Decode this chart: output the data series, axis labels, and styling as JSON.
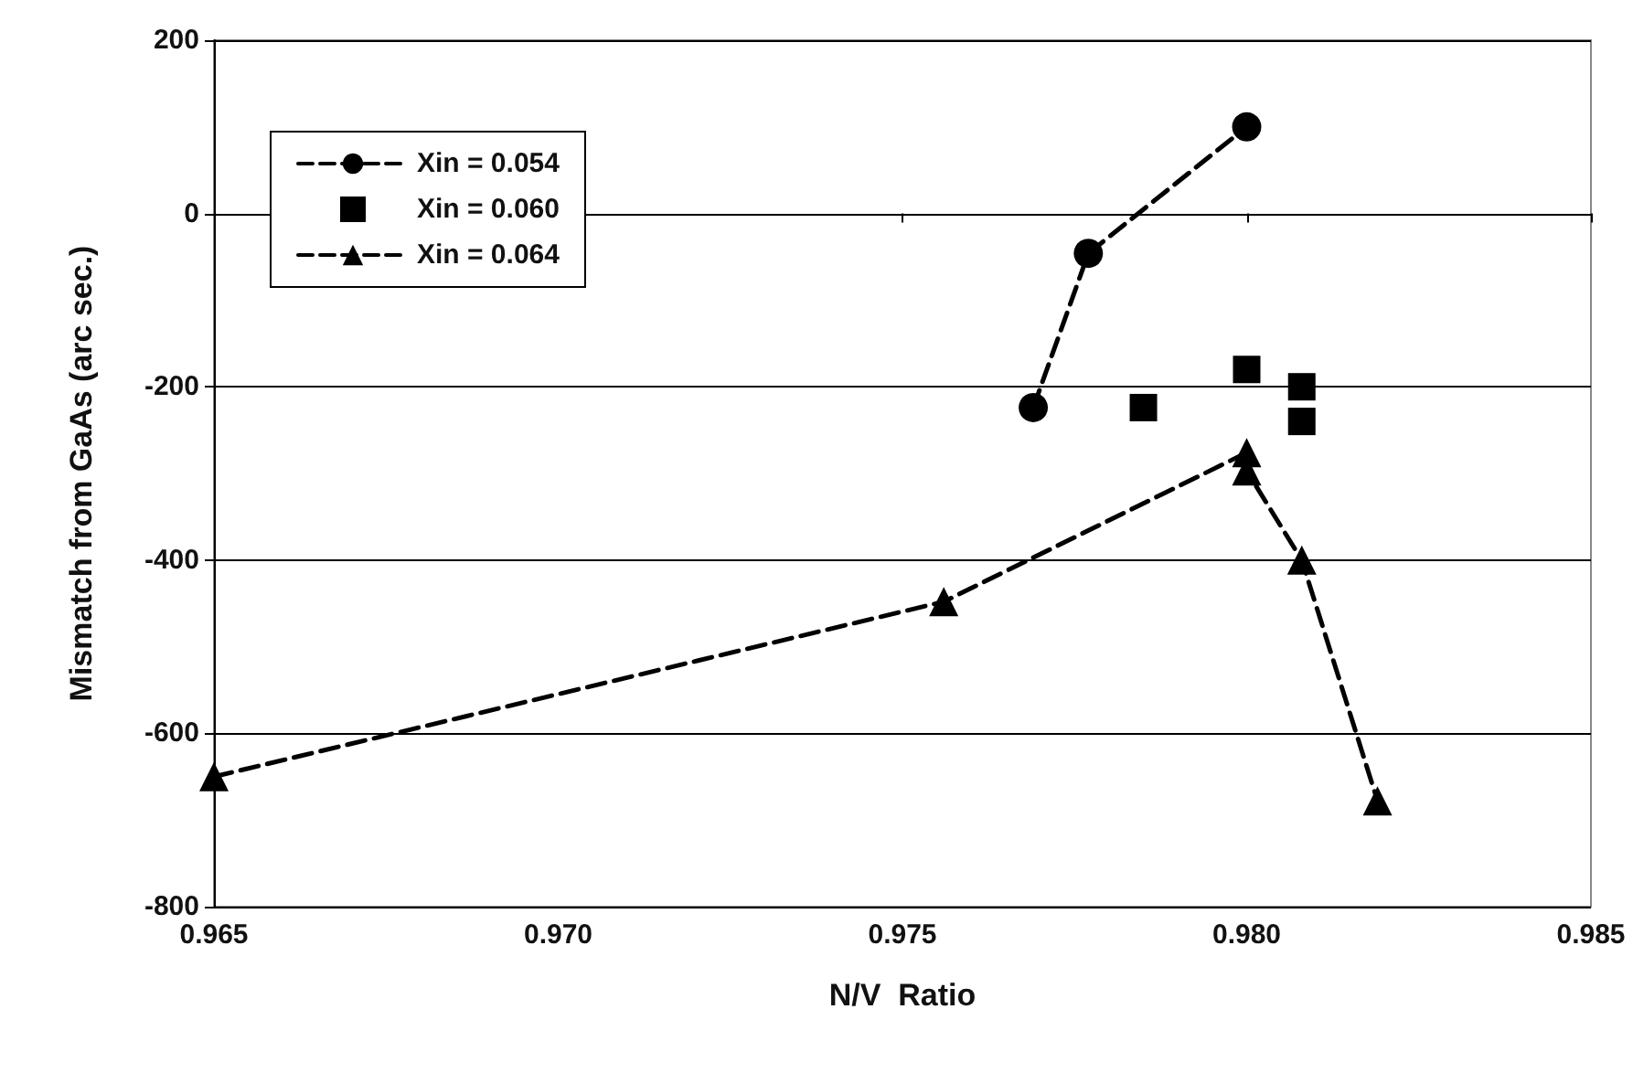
{
  "chart_data": {
    "type": "line",
    "xlabel": "N/V  Ratio",
    "ylabel": "Mismatch from GaAs (arc sec.)",
    "xlim": [
      0.965,
      0.985
    ],
    "xticks": [
      {
        "value": 0.965,
        "label": "0.965"
      },
      {
        "value": 0.97,
        "label": "0.970"
      },
      {
        "value": 0.975,
        "label": "0.975"
      },
      {
        "value": 0.98,
        "label": "0.980"
      },
      {
        "value": 0.985,
        "label": "0.985"
      }
    ],
    "ylim": [
      -800,
      200
    ],
    "yticks": [
      -800,
      -600,
      -400,
      -200,
      0,
      200
    ],
    "grid": "y",
    "legend": "top left",
    "line_style": "dashed",
    "series": [
      {
        "name": "Xin = 0.054",
        "color": "#000000",
        "marker": "circle",
        "x": [
          0.9769,
          0.9777,
          0.98
        ],
        "values": [
          -224,
          -46,
          100
        ]
      },
      {
        "name": "Xin = 0.060",
        "color": "#000000",
        "type": "scatter",
        "marker": "square",
        "x": [
          0.9785,
          0.98,
          0.9808,
          0.9808
        ],
        "values": [
          -224,
          -180,
          -200,
          -240
        ]
      },
      {
        "name": "Xin = 0.064",
        "color": "#000000",
        "marker": "triangle",
        "x": [
          0.965,
          0.9756,
          0.98,
          0.98,
          0.9808,
          0.9819
        ],
        "values": [
          -650,
          -448,
          -276,
          -297,
          -400,
          -678
        ]
      }
    ]
  }
}
